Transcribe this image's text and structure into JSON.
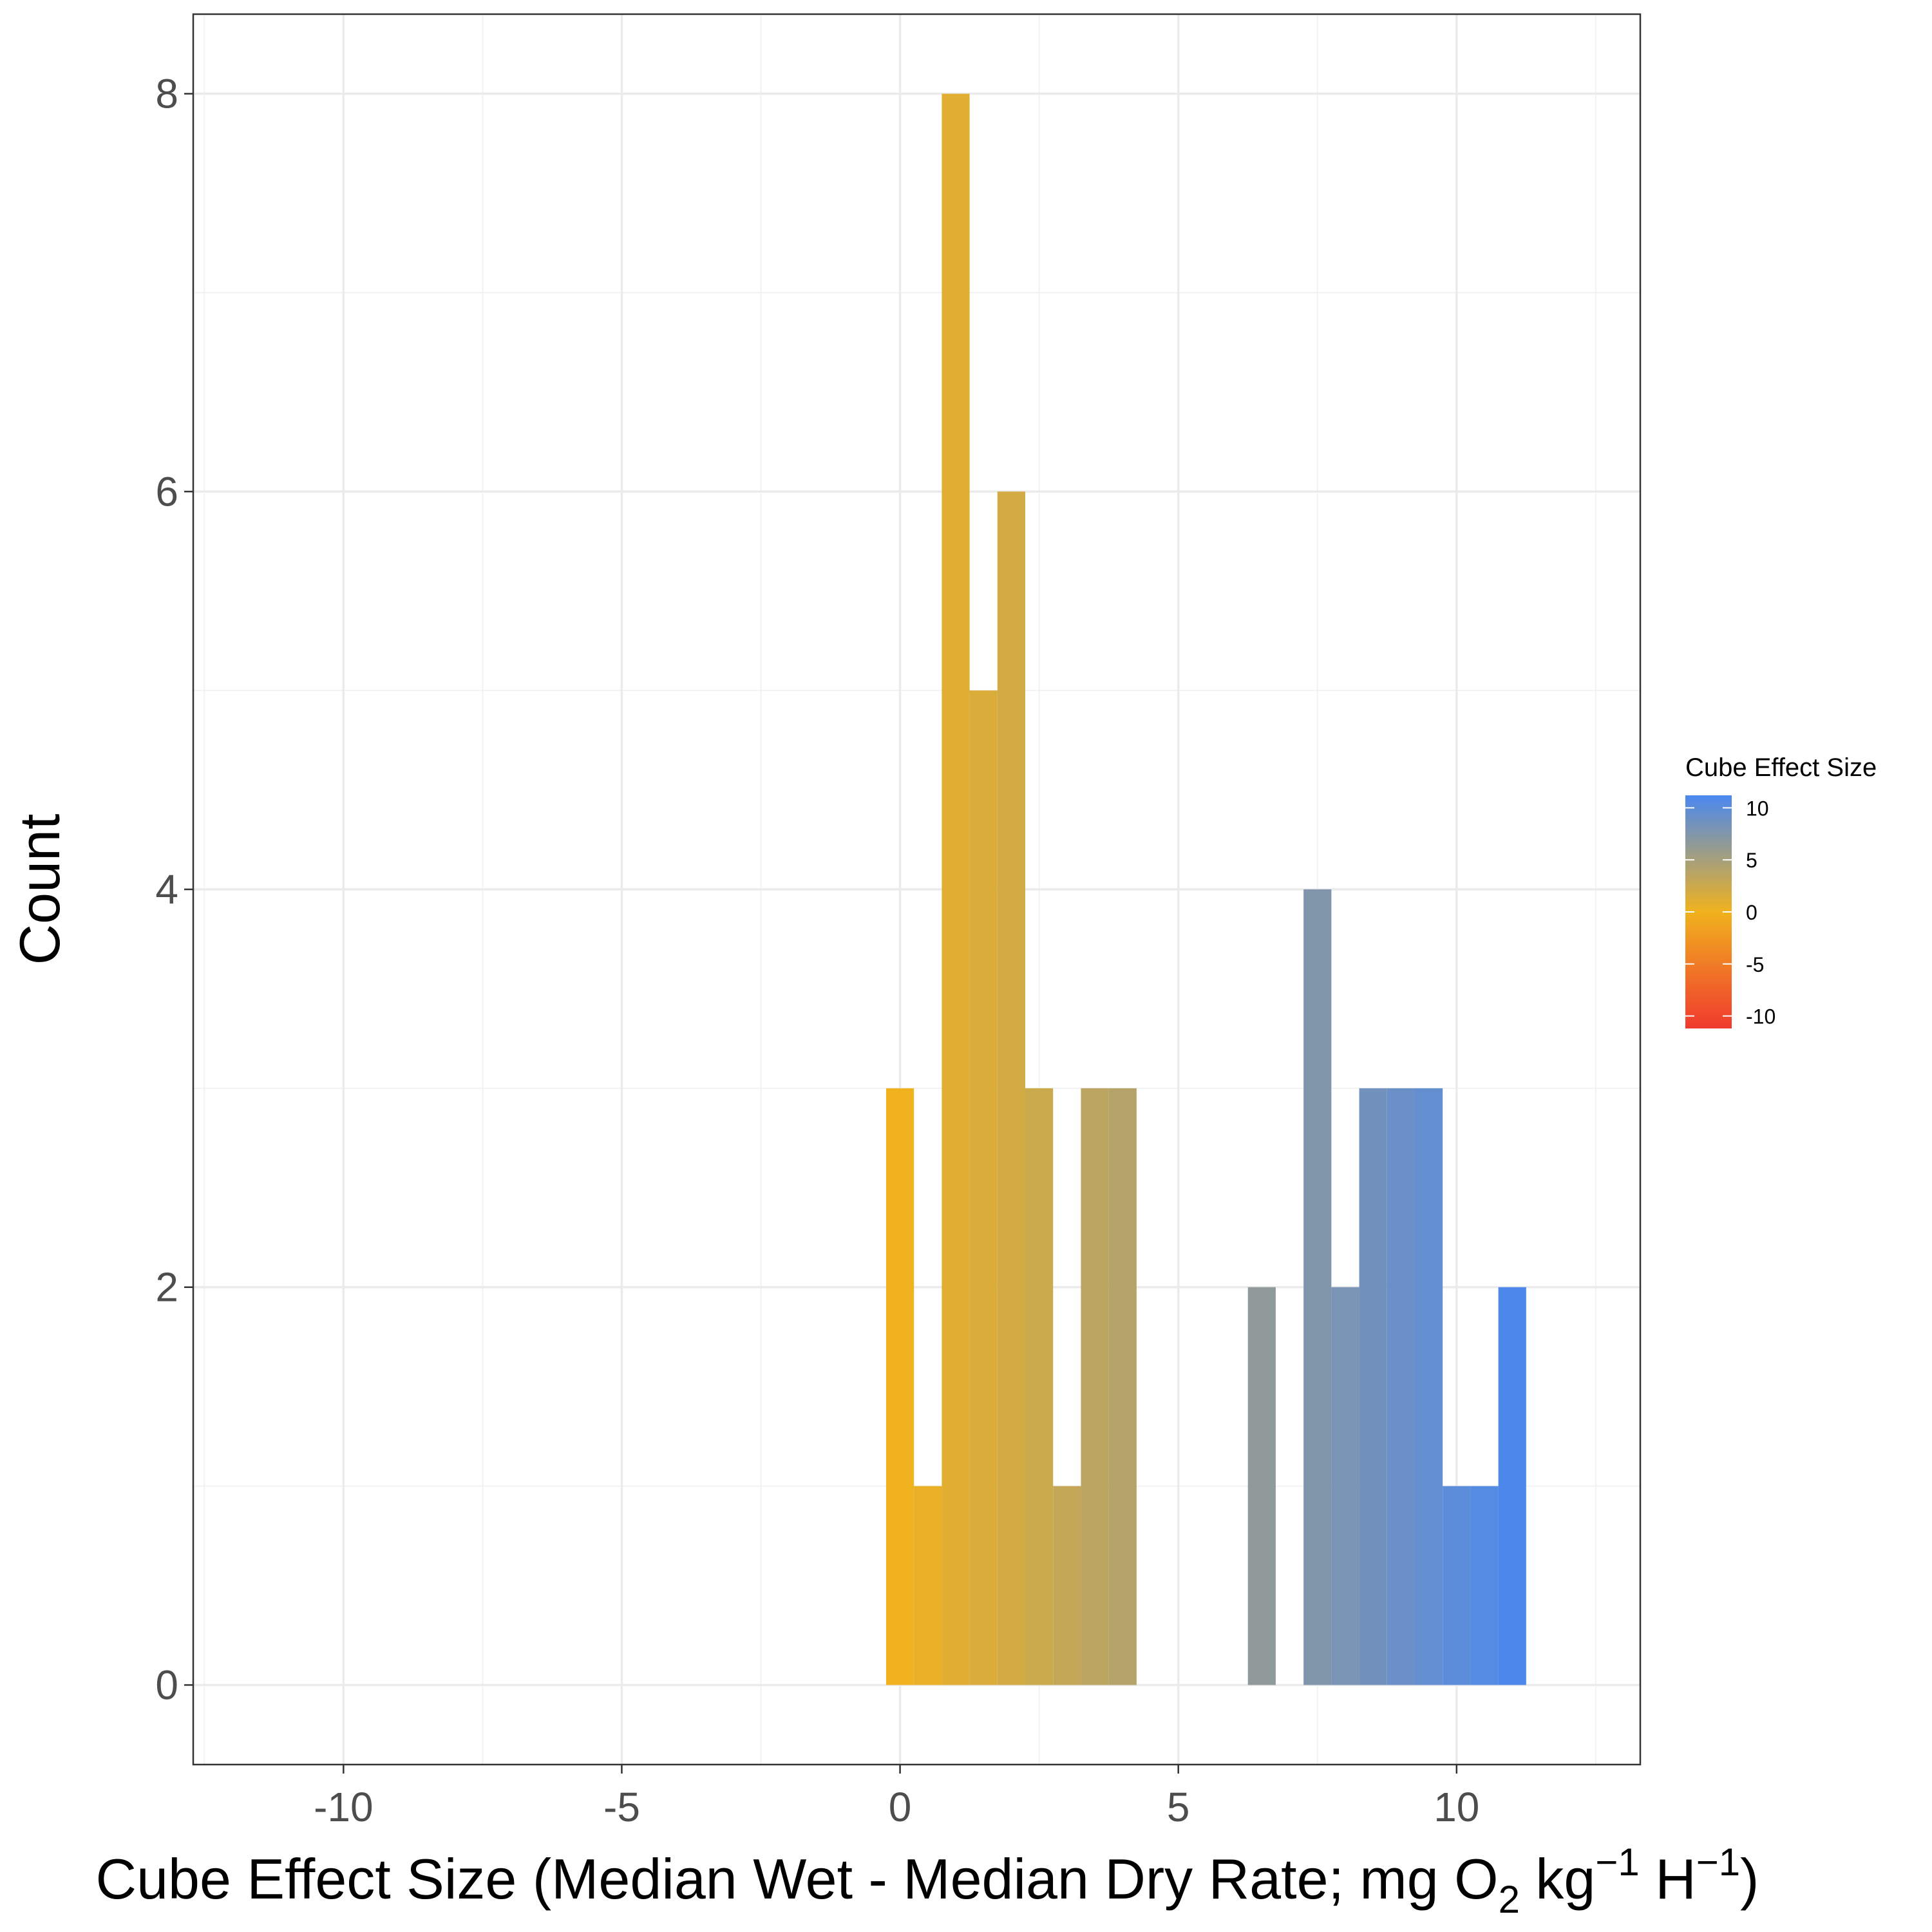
{
  "chart_data": {
    "type": "bar",
    "xlabel": {
      "prefix": "Cube Effect Size (Median Wet - Median Dry Rate; mg O",
      "o2_sub": "2",
      "mid1": " kg",
      "sup1": "−1",
      "mid2": " H",
      "sup2": "−1",
      "suffix": ")"
    },
    "ylabel": "Count",
    "xlim": [
      -12.7,
      13.3
    ],
    "ylim": [
      -0.4,
      8.4
    ],
    "x_ticks": [
      -10,
      -5,
      0,
      5,
      10
    ],
    "x_tick_labels": [
      "-10",
      "-5",
      "0",
      "5",
      "10"
    ],
    "y_ticks": [
      0,
      2,
      4,
      6,
      8
    ],
    "y_tick_labels": [
      "0",
      "2",
      "4",
      "6",
      "8"
    ],
    "grid": true,
    "bin_width": 0.5,
    "bins": [
      {
        "x": 0.0,
        "count": 3
      },
      {
        "x": 0.5,
        "count": 1
      },
      {
        "x": 1.0,
        "count": 8
      },
      {
        "x": 1.5,
        "count": 5
      },
      {
        "x": 2.0,
        "count": 6
      },
      {
        "x": 2.5,
        "count": 3
      },
      {
        "x": 3.0,
        "count": 1
      },
      {
        "x": 3.5,
        "count": 3
      },
      {
        "x": 4.0,
        "count": 3
      },
      {
        "x": 6.5,
        "count": 2
      },
      {
        "x": 7.5,
        "count": 4
      },
      {
        "x": 8.0,
        "count": 2
      },
      {
        "x": 8.5,
        "count": 3
      },
      {
        "x": 9.0,
        "count": 3
      },
      {
        "x": 9.5,
        "count": 3
      },
      {
        "x": 10.0,
        "count": 1
      },
      {
        "x": 10.5,
        "count": 1
      },
      {
        "x": 11.0,
        "count": 2
      }
    ],
    "legend": {
      "title": "Cube Effect Size",
      "position": "right",
      "range": [
        -11.2,
        11.2
      ],
      "ticks": [
        10,
        5,
        0,
        -5,
        -10
      ],
      "tick_labels": [
        "10",
        "5",
        "0",
        "-5",
        "-10"
      ]
    },
    "color_scale": {
      "low": "#F03A2E",
      "mid": "#F0B21E",
      "high": "#4A88F0"
    }
  }
}
